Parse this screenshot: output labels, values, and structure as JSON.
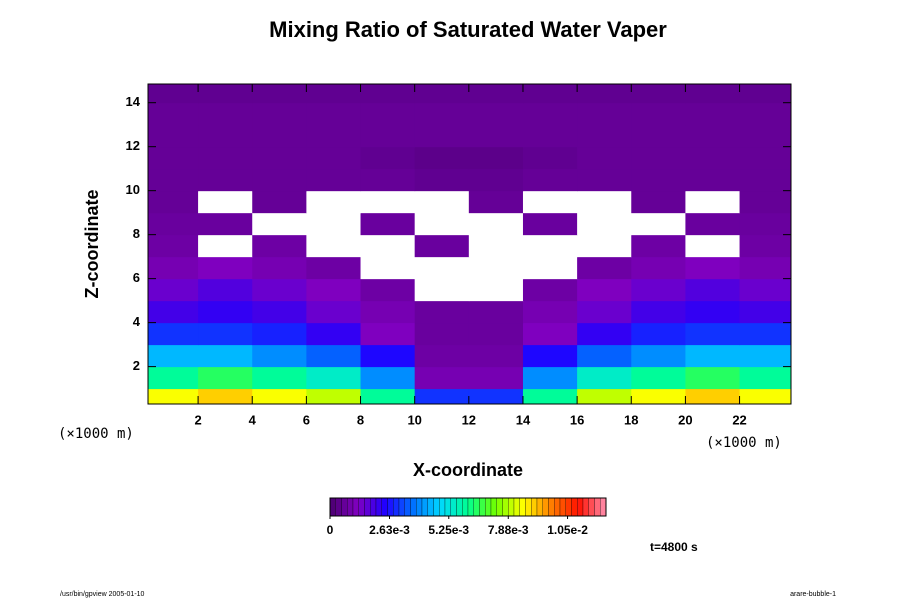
{
  "chart_data": {
    "type": "heatmap",
    "title": "Mixing Ratio of Saturated Water Vaper",
    "x_label": "X-coordinate",
    "y_label": "Z-coordinate",
    "x_unit": "(×1000 m)",
    "y_unit": "(×1000 m)",
    "annotation": "t=4800 s",
    "footer_left": "/usr/bin/gpview 2005-01-10",
    "footer_right": "arare-bubble-1",
    "x": [
      1,
      3,
      5,
      7,
      9,
      11,
      13,
      15,
      17,
      19,
      21,
      23
    ],
    "z": [
      0.5,
      1.5,
      2.5,
      3.5,
      4.5,
      5.5,
      6.5,
      7.5,
      8.5,
      9.5,
      10.5,
      11.5,
      12.5,
      13.5,
      14.5
    ],
    "values": [
      [
        0.0085,
        0.009,
        0.0085,
        0.008,
        0.006,
        0.003,
        0.003,
        0.006,
        0.008,
        0.0085,
        0.009,
        0.0085
      ],
      [
        0.006,
        0.0065,
        0.006,
        0.0055,
        0.004,
        0.001,
        0.001,
        0.004,
        0.0055,
        0.006,
        0.0065,
        0.006
      ],
      [
        0.0045,
        0.0045,
        0.004,
        0.0035,
        0.0025,
        0.0008,
        0.0008,
        0.0025,
        0.0035,
        0.004,
        0.0045,
        0.0045
      ],
      [
        0.003,
        0.003,
        0.0028,
        0.0022,
        0.0012,
        0.0007,
        0.0007,
        0.0012,
        0.0022,
        0.0028,
        0.003,
        0.003
      ],
      [
        0.002,
        0.0022,
        0.002,
        0.0015,
        0.001,
        0.0007,
        0.0007,
        0.001,
        0.0015,
        0.002,
        0.0022,
        0.002
      ],
      [
        0.0015,
        0.0018,
        0.0015,
        0.0012,
        0.0008,
        null,
        null,
        0.0008,
        0.0012,
        0.0015,
        0.0018,
        0.0015
      ],
      [
        0.001,
        0.0012,
        0.001,
        0.0008,
        null,
        null,
        null,
        null,
        0.0008,
        0.001,
        0.0012,
        0.001
      ],
      [
        0.0008,
        null,
        0.0008,
        null,
        null,
        0.0007,
        null,
        null,
        null,
        0.0008,
        null,
        0.0008
      ],
      [
        0.0007,
        0.0007,
        null,
        null,
        0.0007,
        null,
        null,
        0.0007,
        null,
        null,
        0.0007,
        0.0007
      ],
      [
        0.0006,
        null,
        0.0006,
        null,
        null,
        null,
        0.0006,
        null,
        null,
        0.0006,
        null,
        0.0006
      ],
      [
        0.0006,
        0.0006,
        0.0006,
        0.0006,
        0.0006,
        0.0005,
        0.0005,
        0.0006,
        0.0006,
        0.0006,
        0.0006,
        0.0006
      ],
      [
        0.0006,
        0.0006,
        0.0006,
        0.0006,
        0.0005,
        0.0004,
        0.0004,
        0.0005,
        0.0006,
        0.0006,
        0.0006,
        0.0006
      ],
      [
        0.0006,
        0.0006,
        0.0006,
        0.0006,
        0.0006,
        0.0006,
        0.0006,
        0.0006,
        0.0006,
        0.0006,
        0.0006,
        0.0006
      ],
      [
        0.0006,
        0.0006,
        0.0006,
        0.0006,
        0.0006,
        0.0006,
        0.0006,
        0.0006,
        0.0006,
        0.0006,
        0.0006,
        0.0006
      ],
      [
        0.0005,
        0.0005,
        0.0005,
        0.0005,
        0.0005,
        0.0005,
        0.0005,
        0.0005,
        0.0005,
        0.0005,
        0.0005,
        0.0005
      ]
    ],
    "xlim": [
      0.15,
      23.9
    ],
    "ylim": [
      0.3,
      14.85
    ],
    "xticks": [
      2,
      4,
      6,
      8,
      10,
      12,
      14,
      16,
      18,
      20,
      22
    ],
    "yticks": [
      2,
      4,
      6,
      8,
      10,
      12,
      14
    ],
    "clim": [
      0,
      0.0122
    ],
    "cticks": [
      0,
      {
        "value": 0.00263,
        "label": "2.63e-3"
      },
      {
        "value": 0.00525,
        "label": "5.25e-3"
      },
      {
        "value": 0.00788,
        "label": "7.88e-3"
      },
      {
        "value": 0.0105,
        "label": "1.05e-2"
      }
    ],
    "colormap": [
      "#4a0070",
      "#8000c0",
      "#2000ff",
      "#0070ff",
      "#00d8ff",
      "#00ff90",
      "#70ff00",
      "#ffff00",
      "#ff8000",
      "#ff1000",
      "#ff90b0"
    ],
    "missing_color": "#ffffff"
  }
}
